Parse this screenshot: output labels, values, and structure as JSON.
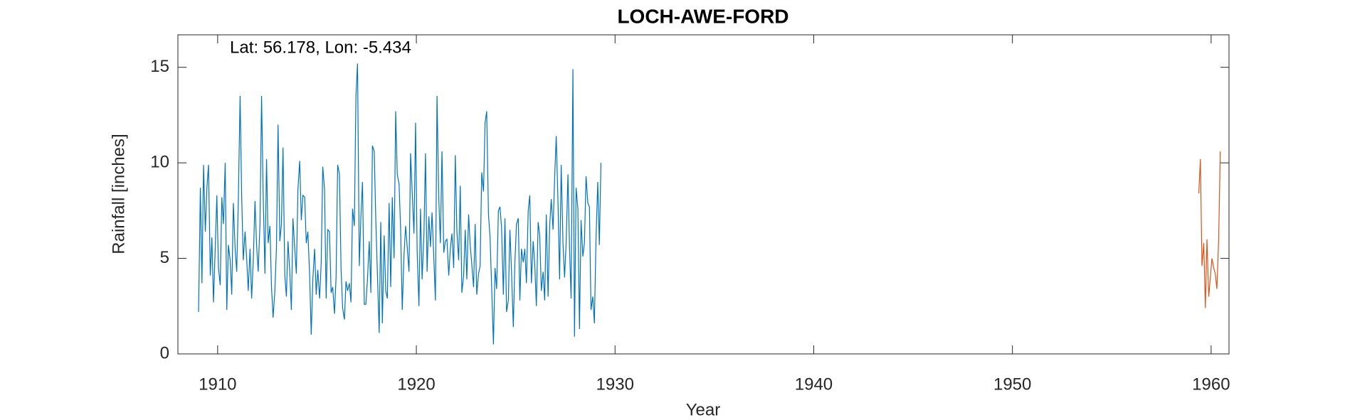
{
  "chart_data": {
    "type": "line",
    "title": "LOCH-AWE-FORD",
    "annotation": "Lat: 56.178, Lon: -5.434",
    "xlabel": "Year",
    "ylabel": "Rainfall [inches]",
    "xlim": [
      1908,
      1960.9
    ],
    "ylim": [
      0,
      16.7
    ],
    "xticks": [
      1910,
      1920,
      1930,
      1940,
      1950,
      1960
    ],
    "yticks": [
      0,
      5,
      10,
      15
    ],
    "series": [
      {
        "color": "#0072BD",
        "x": [
          1909.04,
          1909.13,
          1909.21,
          1909.29,
          1909.38,
          1909.46,
          1909.54,
          1909.63,
          1909.71,
          1909.79,
          1909.88,
          1909.96,
          1910.04,
          1910.13,
          1910.21,
          1910.29,
          1910.38,
          1910.46,
          1910.54,
          1910.63,
          1910.71,
          1910.79,
          1910.88,
          1910.96,
          1911.04,
          1911.13,
          1911.21,
          1911.29,
          1911.38,
          1911.46,
          1911.54,
          1911.63,
          1911.71,
          1911.79,
          1911.88,
          1911.96,
          1912.04,
          1912.13,
          1912.21,
          1912.29,
          1912.38,
          1912.46,
          1912.54,
          1912.63,
          1912.71,
          1912.79,
          1912.88,
          1912.96,
          1913.04,
          1913.13,
          1913.21,
          1913.29,
          1913.38,
          1913.46,
          1913.54,
          1913.63,
          1913.71,
          1913.79,
          1913.88,
          1913.96,
          1914.04,
          1914.13,
          1914.21,
          1914.29,
          1914.38,
          1914.46,
          1914.54,
          1914.63,
          1914.71,
          1914.79,
          1914.88,
          1914.96,
          1915.04,
          1915.13,
          1915.21,
          1915.29,
          1915.38,
          1915.46,
          1915.54,
          1915.63,
          1915.71,
          1915.79,
          1915.88,
          1915.96,
          1916.04,
          1916.13,
          1916.21,
          1916.29,
          1916.38,
          1916.46,
          1916.54,
          1916.63,
          1916.71,
          1916.79,
          1916.88,
          1916.96,
          1917.04,
          1917.13,
          1917.21,
          1917.29,
          1917.38,
          1917.46,
          1917.54,
          1917.63,
          1917.71,
          1917.79,
          1917.88,
          1917.96,
          1918.04,
          1918.13,
          1918.21,
          1918.29,
          1918.38,
          1918.46,
          1918.54,
          1918.63,
          1918.71,
          1918.79,
          1918.88,
          1918.96,
          1919.04,
          1919.13,
          1919.21,
          1919.29,
          1919.38,
          1919.46,
          1919.54,
          1919.63,
          1919.71,
          1919.79,
          1919.88,
          1919.96,
          1920.04,
          1920.13,
          1920.21,
          1920.29,
          1920.38,
          1920.46,
          1920.54,
          1920.63,
          1920.71,
          1920.79,
          1920.88,
          1920.96,
          1921.04,
          1921.13,
          1921.21,
          1921.29,
          1921.38,
          1921.46,
          1921.54,
          1921.63,
          1921.71,
          1921.79,
          1921.88,
          1921.96,
          1922.04,
          1922.13,
          1922.21,
          1922.29,
          1922.38,
          1922.46,
          1922.54,
          1922.63,
          1922.71,
          1922.79,
          1922.88,
          1922.96,
          1923.04,
          1923.13,
          1923.21,
          1923.29,
          1923.38,
          1923.46,
          1923.54,
          1923.63,
          1923.71,
          1923.79,
          1923.88,
          1923.96,
          1924.04,
          1924.13,
          1924.21,
          1924.29,
          1924.38,
          1924.46,
          1924.54,
          1924.63,
          1924.71,
          1924.79,
          1924.88,
          1924.96,
          1925.04,
          1925.13,
          1925.21,
          1925.29,
          1925.38,
          1925.46,
          1925.54,
          1925.63,
          1925.71,
          1925.79,
          1925.88,
          1925.96,
          1926.04,
          1926.13,
          1926.21,
          1926.29,
          1926.38,
          1926.46,
          1926.54,
          1926.63,
          1926.71,
          1926.79,
          1926.88,
          1926.96,
          1927.04,
          1927.13,
          1927.21,
          1927.29,
          1927.38,
          1927.46,
          1927.54,
          1927.63,
          1927.71,
          1927.79,
          1927.88,
          1927.96,
          1928.04,
          1928.13,
          1928.21,
          1928.29,
          1928.38,
          1928.46,
          1928.54,
          1928.63,
          1928.71,
          1928.79,
          1928.88,
          1928.96,
          1929.04,
          1929.13,
          1929.21,
          1929.29
        ],
        "values": [
          2.2,
          8.7,
          3.7,
          9.9,
          6.4,
          8.7,
          9.9,
          4.1,
          6.1,
          2.7,
          5.6,
          8.3,
          4.5,
          3.6,
          8.2,
          6.8,
          10,
          2.3,
          5.7,
          4.9,
          3.1,
          7.9,
          5.5,
          4.3,
          8.0,
          13.5,
          8.2,
          4.9,
          6.4,
          5.0,
          3.3,
          5.5,
          2.9,
          4.8,
          8.0,
          5.7,
          4.3,
          6.8,
          13.5,
          8.4,
          4.2,
          10.2,
          5.8,
          6.7,
          3.5,
          1.9,
          3.3,
          5.6,
          12.0,
          5.9,
          6.8,
          10.8,
          4.1,
          3.0,
          5.9,
          4.3,
          2.3,
          7.1,
          5.5,
          4.2,
          8.6,
          10.1,
          7.0,
          8.3,
          8.2,
          5.8,
          6.4,
          4.1,
          1.0,
          3.9,
          5.5,
          3.1,
          4.4,
          2.9,
          4.7,
          9.8,
          8.6,
          2.9,
          6.5,
          6.4,
          3.2,
          3.5,
          2.1,
          4.0,
          9.9,
          9.4,
          4.5,
          2.4,
          1.8,
          3.8,
          3.3,
          3.7,
          2.7,
          7.6,
          6.7,
          13.5,
          15.2,
          4.6,
          7.2,
          9.0,
          2.6,
          2.6,
          3.9,
          5.9,
          3.2,
          10.9,
          10.6,
          7.0,
          4.2,
          1.1,
          6.9,
          1.6,
          6.2,
          3.3,
          2.9,
          7.9,
          3.5,
          8.2,
          5.0,
          12.7,
          9.4,
          8.9,
          6.5,
          2.3,
          5.2,
          6.7,
          5.6,
          4.3,
          10.5,
          8.5,
          6.3,
          12.1,
          5.4,
          2.5,
          7.6,
          3.9,
          6.2,
          10.5,
          4.3,
          7.2,
          5.6,
          7.4,
          5.0,
          2.8,
          13.5,
          8.1,
          5.8,
          10.6,
          5.3,
          5.9,
          6.0,
          4.1,
          5.5,
          6.3,
          4.5,
          10.4,
          6.4,
          4.9,
          8.8,
          3.2,
          4.1,
          6.5,
          3.9,
          7.3,
          5.7,
          4.7,
          3.5,
          6.8,
          3.1,
          4.2,
          4.6,
          9.5,
          8.5,
          12.1,
          12.7,
          7.3,
          6.1,
          3.5,
          0.5,
          4.5,
          3.4,
          7.5,
          7.7,
          6.6,
          3.1,
          7.1,
          2.2,
          2.8,
          6.5,
          4.3,
          1.4,
          4.8,
          6.8,
          7.1,
          2.8,
          5.5,
          4.8,
          5.5,
          3.7,
          7.5,
          8.3,
          3.7,
          5.9,
          4.7,
          2.5,
          6.9,
          6.2,
          3.3,
          4.3,
          2.8,
          7.3,
          3.0,
          6.7,
          8.1,
          6.5,
          9.2,
          11.4,
          7.9,
          3.9,
          9.9,
          5.8,
          4.0,
          5.8,
          9.4,
          5.5,
          2.9,
          14.9,
          0.9,
          8.7,
          7.6,
          1.3,
          7.0,
          5.1,
          5.8,
          9.3,
          7.9,
          7.7,
          2.3,
          3.0,
          1.6,
          5.9,
          9.0,
          5.7,
          10.0
        ]
      },
      {
        "color": "#D95319",
        "x": [
          1959.38,
          1959.46,
          1959.54,
          1959.63,
          1959.71,
          1959.79,
          1959.88,
          1959.96,
          1960.04,
          1960.13,
          1960.21,
          1960.29,
          1960.38,
          1960.46
        ],
        "values": [
          8.4,
          10.2,
          4.6,
          5.8,
          2.4,
          6.0,
          3.0,
          4.0,
          5.0,
          4.5,
          4.2,
          3.4,
          6.0,
          10.6
        ]
      }
    ]
  }
}
